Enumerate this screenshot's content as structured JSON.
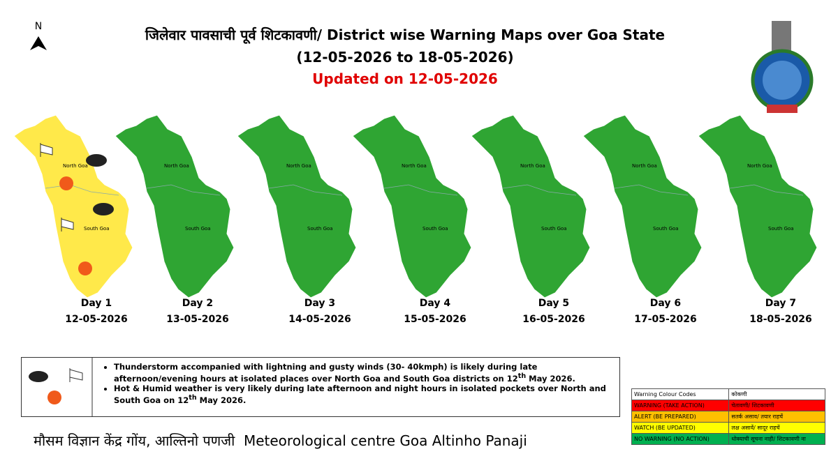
{
  "header": {
    "north": "N",
    "title": "जिलेवार पावसाची पूर्व शिटकावणी/ District wise Warning Maps over Goa State",
    "date_range": "(12-05-2026 to 18-05-2026)",
    "updated": "Updated on 12-05-2026"
  },
  "maps": [
    {
      "day": "Day 1",
      "date": "12-05-2026",
      "color": "#ffe94a",
      "districts": [
        "North Goa",
        "South Goa"
      ]
    },
    {
      "day": "Day 2",
      "date": "13-05-2026",
      "color": "#2fa533",
      "districts": [
        "North Goa",
        "South Goa"
      ]
    },
    {
      "day": "Day 3",
      "date": "14-05-2026",
      "color": "#2fa533",
      "districts": [
        "North Goa",
        "South Goa"
      ]
    },
    {
      "day": "Day 4",
      "date": "15-05-2026",
      "color": "#2fa533",
      "districts": [
        "North Goa",
        "South Goa"
      ]
    },
    {
      "day": "Day 5",
      "date": "16-05-2026",
      "color": "#2fa533",
      "districts": [
        "North Goa",
        "South Goa"
      ]
    },
    {
      "day": "Day 6",
      "date": "17-05-2026",
      "color": "#2fa533",
      "districts": [
        "North Goa",
        "South Goa"
      ]
    },
    {
      "day": "Day 7",
      "date": "18-05-2026",
      "color": "#2fa533",
      "districts": [
        "North Goa",
        "South Goa"
      ]
    }
  ],
  "bullets": [
    {
      "before": "Thunderstorm accompanied with lightning and gusty winds (30- 40kmph) is likely during late afternoon/evening hours at isolated places over North Goa and South Goa districts on 12",
      "sup": "th",
      "after": " May 2026."
    },
    {
      "before": "Hot & Humid weather is very likely during late afternoon and night hours in isolated pockets over North and South Goa on 12",
      "sup": "th",
      "after": " May 2026."
    }
  ],
  "legend": {
    "header": [
      "Warning Colour Codes",
      "कोकणी"
    ],
    "rows": [
      {
        "code": "WARNING (TAKE ACTION)",
        "konkani": "चेतावणी/ शिटकावणी",
        "color": "#ff0000"
      },
      {
        "code": "ALERT (BE PREPARED)",
        "konkani": "सतर्क असाव/ तयार राहचें",
        "color": "#ffc000"
      },
      {
        "code": "WATCH (BE UPDATED)",
        "konkani": "लक्ष असावें/ सादूर राहचें",
        "color": "#ffff00"
      },
      {
        "code": "NO WARNING (NO ACTION)",
        "konkani": "धोक्याची सूचना नाही/ शिटकावणी ना",
        "color": "#00b050"
      }
    ]
  },
  "footer": {
    "hindi": "मौसम विज्ञान केंद्र गोंय, आल्तिनो पणजी",
    "english": "Meteorological centre Goa Altinho Panaji"
  }
}
